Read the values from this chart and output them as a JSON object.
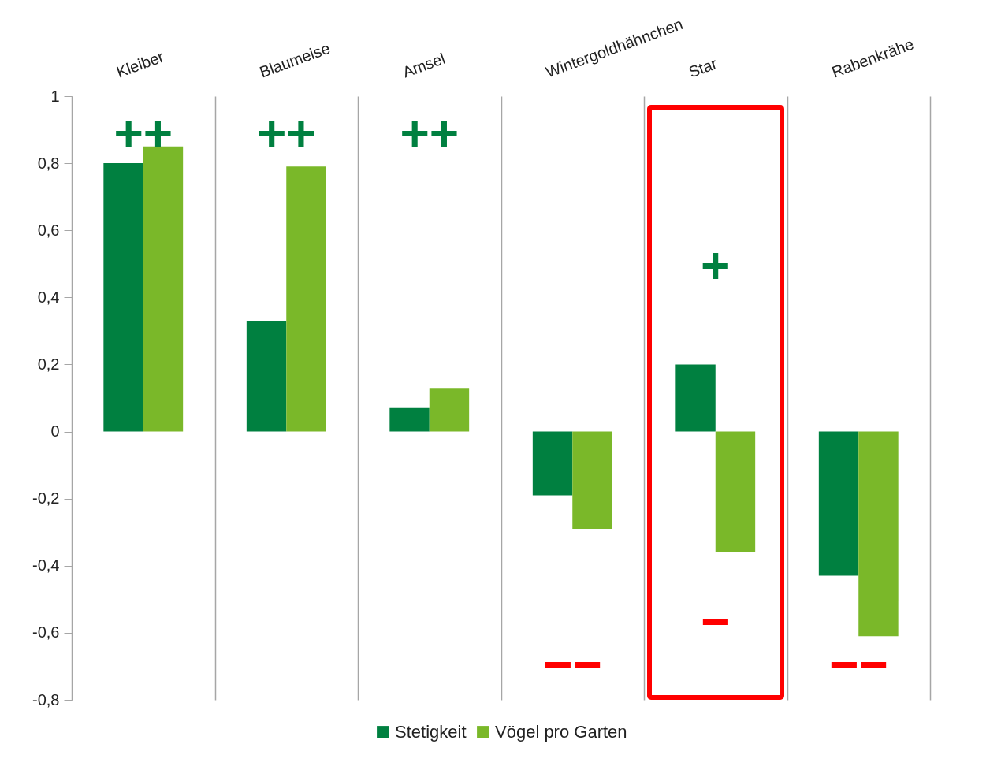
{
  "chart_data": {
    "type": "bar",
    "categories": [
      "Kleiber",
      "Blaumeise",
      "Amsel",
      "Wintergoldhähnchen",
      "Star",
      "Rabenkrähe"
    ],
    "series": [
      {
        "name": "Stetigkeit",
        "color": "#008040",
        "values": [
          0.8,
          0.33,
          0.07,
          -0.19,
          0.2,
          -0.43
        ]
      },
      {
        "name": "Vögel pro Garten",
        "color": "#7ab829",
        "values": [
          0.85,
          0.79,
          0.13,
          -0.29,
          -0.36,
          -0.61
        ]
      }
    ],
    "ylim": [
      -0.8,
      1
    ],
    "yticks": [
      {
        "value": -0.8,
        "label": "-0,8"
      },
      {
        "value": -0.6,
        "label": "-0,6"
      },
      {
        "value": -0.4,
        "label": "-0,4"
      },
      {
        "value": -0.2,
        "label": "-0,2"
      },
      0,
      {
        "value": 0.2,
        "label": "0,2"
      },
      {
        "value": 0.4,
        "label": "0,4"
      },
      {
        "value": 0.6,
        "label": "0,6"
      },
      {
        "value": 0.8,
        "label": "0,8"
      },
      1
    ],
    "grid": "x",
    "legend": "bottom",
    "annotations": [
      "++",
      "++",
      "++",
      "−−",
      "+",
      "−",
      "−−"
    ]
  }
}
